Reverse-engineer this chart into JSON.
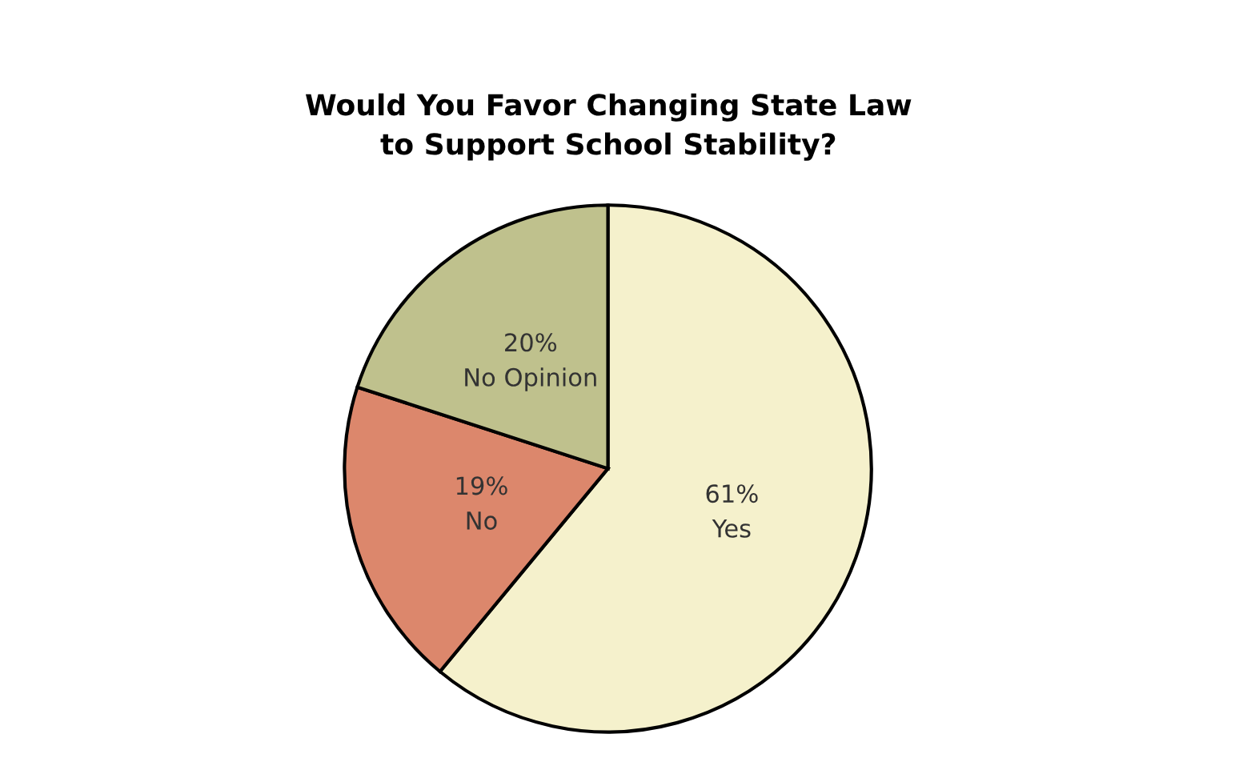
{
  "chart_data": {
    "type": "pie",
    "title": "Would You Favor Changing State Law\nto Support School Stability?",
    "categories": [
      "Yes",
      "No",
      "No Opinion"
    ],
    "values": [
      61,
      19,
      20
    ],
    "value_labels": [
      "61%",
      "19%",
      "20%"
    ],
    "colors": [
      "#f5f1cc",
      "#dc876c",
      "#bfc18d"
    ],
    "legend": false
  }
}
